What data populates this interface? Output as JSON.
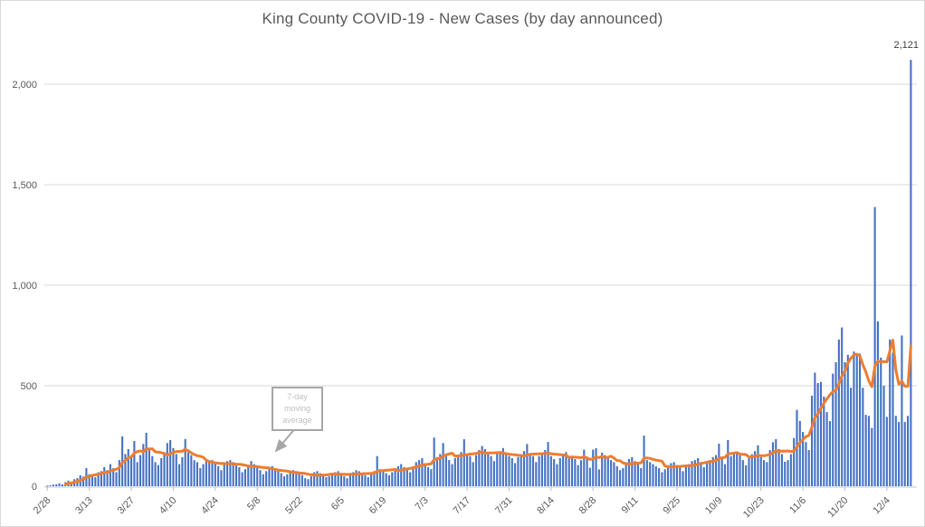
{
  "chart_data": {
    "type": "bar",
    "title": "King County COVID-19 - New Cases (by day announced)",
    "xlabel": "",
    "ylabel": "",
    "x_unit": "day (2020, announced by day)",
    "legend": "none",
    "grid": "horizontal",
    "ylim": [
      0,
      2250
    ],
    "y_ticks": {
      "values": [
        0,
        500,
        1000,
        1500,
        2000
      ],
      "labels": [
        "0",
        "500",
        "1,000",
        "1,500",
        "2,000"
      ]
    },
    "x_ticks": {
      "interval_days": 14,
      "labels": [
        "2/28",
        "3/13",
        "3/27",
        "4/10",
        "4/24",
        "5/8",
        "5/22",
        "6/5",
        "6/19",
        "7/3",
        "7/17",
        "7/31",
        "8/14",
        "8/28",
        "9/11",
        "9/25",
        "10/9",
        "10/23",
        "11/6",
        "11/20",
        "12/4"
      ],
      "indices": [
        0,
        14,
        28,
        42,
        56,
        70,
        84,
        98,
        112,
        126,
        140,
        154,
        168,
        182,
        196,
        210,
        224,
        238,
        252,
        266,
        280
      ]
    },
    "series": [
      {
        "name": "New cases by day",
        "type": "bar",
        "color": "#4472C4"
      },
      {
        "name": "7-day moving average",
        "type": "line",
        "color": "#ED7D31",
        "derived_from": "trailing 7-day mean of daily values"
      }
    ],
    "start_label": "2/28",
    "end_label": "12/12",
    "values": [
      3,
      5,
      8,
      10,
      14,
      9,
      20,
      28,
      22,
      35,
      40,
      55,
      48,
      90,
      60,
      55,
      45,
      70,
      75,
      95,
      80,
      110,
      90,
      70,
      130,
      248,
      160,
      185,
      140,
      225,
      120,
      155,
      210,
      266,
      180,
      150,
      120,
      105,
      140,
      170,
      215,
      230,
      190,
      160,
      110,
      145,
      235,
      170,
      155,
      130,
      120,
      90,
      110,
      130,
      125,
      130,
      115,
      100,
      80,
      110,
      125,
      130,
      120,
      105,
      95,
      70,
      85,
      100,
      125,
      110,
      95,
      80,
      60,
      75,
      90,
      100,
      85,
      75,
      65,
      50,
      60,
      70,
      80,
      75,
      65,
      55,
      40,
      35,
      50,
      70,
      75,
      65,
      55,
      45,
      50,
      65,
      70,
      75,
      60,
      50,
      40,
      55,
      70,
      80,
      75,
      65,
      55,
      45,
      60,
      75,
      150,
      85,
      75,
      65,
      55,
      70,
      90,
      100,
      110,
      95,
      85,
      70,
      95,
      120,
      130,
      140,
      115,
      95,
      85,
      242,
      145,
      160,
      215,
      150,
      130,
      110,
      140,
      155,
      170,
      234,
      160,
      150,
      120,
      155,
      180,
      200,
      185,
      170,
      150,
      125,
      160,
      175,
      190,
      165,
      150,
      140,
      115,
      145,
      160,
      175,
      210,
      165,
      150,
      120,
      150,
      165,
      180,
      220,
      150,
      135,
      110,
      140,
      155,
      170,
      150,
      152,
      135,
      105,
      130,
      182,
      137,
      92,
      182,
      189,
      84,
      167,
      155,
      140,
      130,
      120,
      100,
      80,
      90,
      120,
      135,
      145,
      125,
      110,
      90,
      252,
      130,
      120,
      110,
      100,
      90,
      70,
      85,
      105,
      115,
      120,
      105,
      95,
      75,
      95,
      110,
      125,
      130,
      140,
      120,
      95,
      115,
      130,
      145,
      155,
      212,
      140,
      110,
      230,
      150,
      160,
      170,
      159,
      130,
      104,
      145,
      159,
      175,
      204,
      145,
      130,
      120,
      180,
      219,
      234,
      185,
      160,
      122,
      130,
      160,
      240,
      380,
      325,
      270,
      220,
      180,
      450,
      565,
      513,
      519,
      446,
      369,
      324,
      560,
      617,
      730,
      790,
      617,
      654,
      490,
      670,
      650,
      660,
      490,
      355,
      350,
      290,
      1389,
      820,
      640,
      500,
      345,
      730,
      665,
      350,
      320,
      750,
      320,
      350,
      2121
    ],
    "max_point_label": "2,121",
    "annotation": {
      "text": "7-day moving average",
      "points_to": "moving average line near 5/8"
    },
    "colors": {
      "bar": "#4472C4",
      "line": "#ED7D31",
      "gridline": "#D9D9D9",
      "axis_line": "#C9C9C9",
      "tick_mark": "#BFBFBF",
      "axis_text": "#595959",
      "title_text": "#595959",
      "callout_border": "#A6A6A6",
      "callout_text": "#BFBFBF",
      "data_label_text": "#404040"
    }
  }
}
